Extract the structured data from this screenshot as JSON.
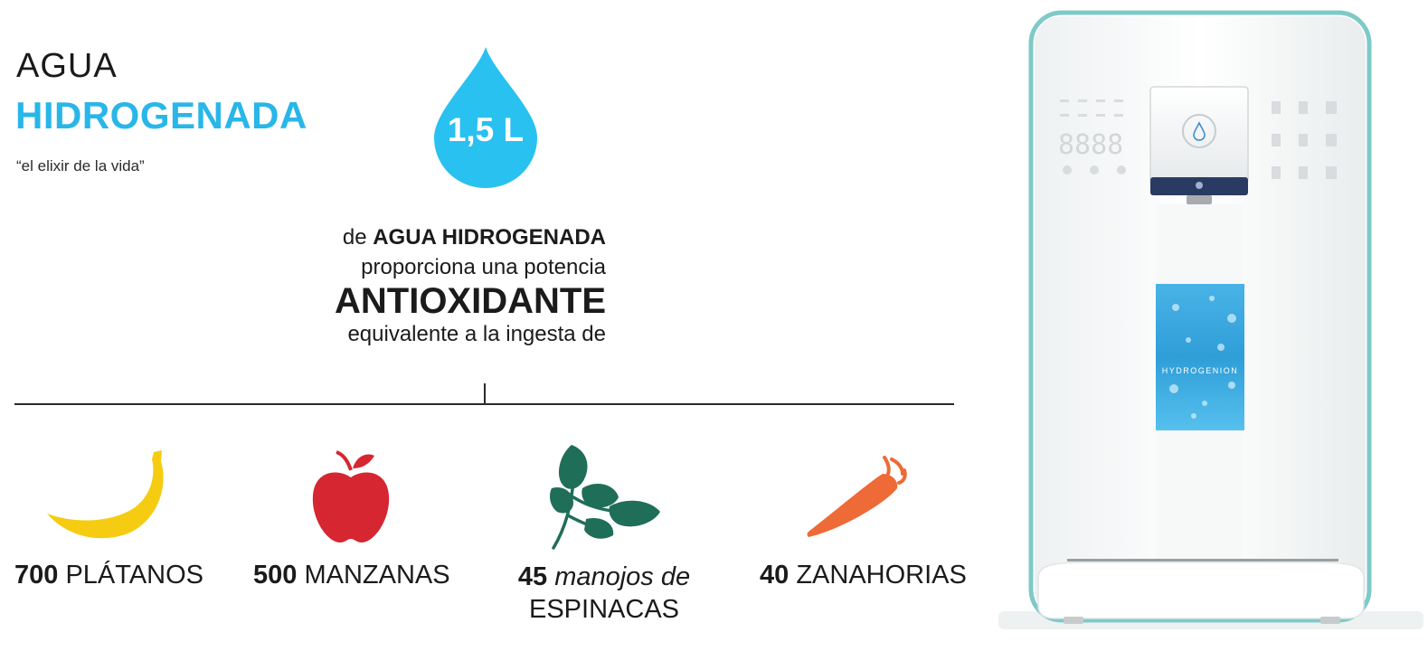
{
  "header": {
    "title_line1": "AGUA",
    "title_line2": "HIDROGENADA",
    "subtitle": "“el elixir de la vida”"
  },
  "drop": {
    "label": "1,5 L",
    "color": "#29c1f0"
  },
  "statement": {
    "prefix": "de ",
    "highlight": "AGUA HIDROGENADA",
    "line2": "proporciona una potencia",
    "line3": "ANTIOXIDANTE",
    "line4": "equivalente a la ingesta de"
  },
  "items": [
    {
      "icon": "banana-icon",
      "count": "700",
      "name": "PLÁTANOS",
      "color": "#f5cc12"
    },
    {
      "icon": "apple-icon",
      "count": "500",
      "name": "MANZANAS",
      "color": "#d62631"
    },
    {
      "icon": "spinach-icon",
      "count": "45",
      "name_italic": "manojos de",
      "name": "ESPINACAS",
      "color": "#1f6e58"
    },
    {
      "icon": "carrot-icon",
      "count": "40",
      "name": "ZANAHORIAS",
      "color": "#ee6a36"
    }
  ],
  "dispenser": {
    "brand": "HYDROGENION",
    "display_digits": "8888"
  },
  "colors": {
    "accent": "#29b6e8",
    "text": "#1b1b1b"
  }
}
